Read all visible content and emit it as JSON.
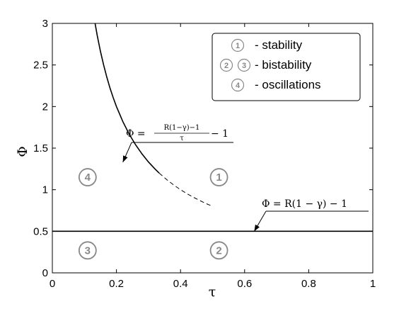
{
  "chart_data": {
    "type": "line",
    "xlabel": "τ",
    "ylabel": "Φ",
    "xlim": [
      0,
      1
    ],
    "ylim": [
      0,
      3
    ],
    "xticks": [
      "0",
      "0.2",
      "0.4",
      "0.6",
      "0.8",
      "1"
    ],
    "yticks": [
      "0",
      "0.5",
      "1",
      "1.5",
      "2",
      "2.5",
      "3"
    ],
    "grid": false,
    "legend_position": "top-right",
    "legend": [
      {
        "markers": [
          "1"
        ],
        "label": "- stability"
      },
      {
        "markers": [
          "2",
          "3"
        ],
        "label": "- bistability"
      },
      {
        "markers": [
          "4"
        ],
        "label": "- oscillations"
      }
    ],
    "series": [
      {
        "style": "solid",
        "x": [
          0.1333,
          0.14,
          0.15,
          0.16,
          0.17,
          0.18,
          0.19,
          0.2,
          0.22,
          0.24,
          0.26,
          0.28,
          0.3,
          0.32,
          0.3333
        ],
        "y": [
          3.0,
          2.857,
          2.667,
          2.5,
          2.353,
          2.222,
          2.105,
          2.0,
          1.818,
          1.667,
          1.538,
          1.429,
          1.333,
          1.25,
          1.2
        ]
      },
      {
        "style": "dashed",
        "x": [
          0.3333,
          0.36,
          0.38,
          0.4,
          0.42,
          0.44,
          0.46,
          0.48,
          0.5
        ],
        "y": [
          1.2,
          1.111,
          1.053,
          1.0,
          0.952,
          0.909,
          0.87,
          0.833,
          0.8
        ]
      },
      {
        "style": "solid",
        "x": [
          0,
          1
        ],
        "y": [
          0.5,
          0.5
        ]
      }
    ],
    "regions": [
      {
        "label": "4",
        "x": 0.11,
        "y": 1.15
      },
      {
        "label": "1",
        "x": 0.52,
        "y": 1.15
      },
      {
        "label": "3",
        "x": 0.11,
        "y": 0.27
      },
      {
        "label": "2",
        "x": 0.52,
        "y": 0.27
      }
    ],
    "annotations": [
      {
        "text_lhs": "Φ = ",
        "numerator": "R(1−γ)−1",
        "denominator": "τ",
        "text_rhs": " − 1",
        "target_x": 0.22,
        "target_y": 1.33
      },
      {
        "text": "Φ = R(1 − γ) − 1",
        "target_x": 0.63,
        "target_y": 0.5
      }
    ]
  }
}
